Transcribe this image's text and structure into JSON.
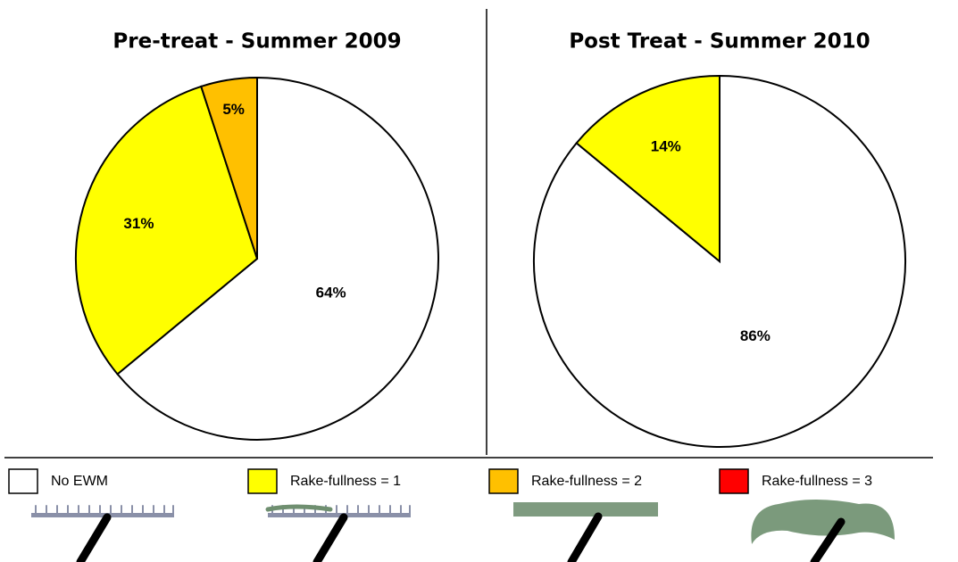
{
  "chart_data": [
    {
      "type": "pie",
      "title": "Pre-treat - Summer 2009",
      "categories": [
        "No EWM",
        "Rake-fullness = 1",
        "Rake-fullness = 2"
      ],
      "values": [
        64,
        31,
        5
      ],
      "value_labels": [
        "64%",
        "31%",
        "5%"
      ],
      "colors": [
        "#ffffff",
        "#ffff00",
        "#ffc000"
      ]
    },
    {
      "type": "pie",
      "title": "Post Treat - Summer 2010",
      "categories": [
        "No EWM",
        "Rake-fullness = 1"
      ],
      "values": [
        86,
        14
      ],
      "value_labels": [
        "86%",
        "14%"
      ],
      "colors": [
        "#ffffff",
        "#ffff00"
      ]
    }
  ],
  "legend": [
    {
      "name": "No EWM",
      "color": "#ffffff"
    },
    {
      "name": "Rake-fullness = 1",
      "color": "#ffff00"
    },
    {
      "name": "Rake-fullness = 2",
      "color": "#ffc000"
    },
    {
      "name": "Rake-fullness = 3",
      "color": "#ff0000"
    }
  ]
}
